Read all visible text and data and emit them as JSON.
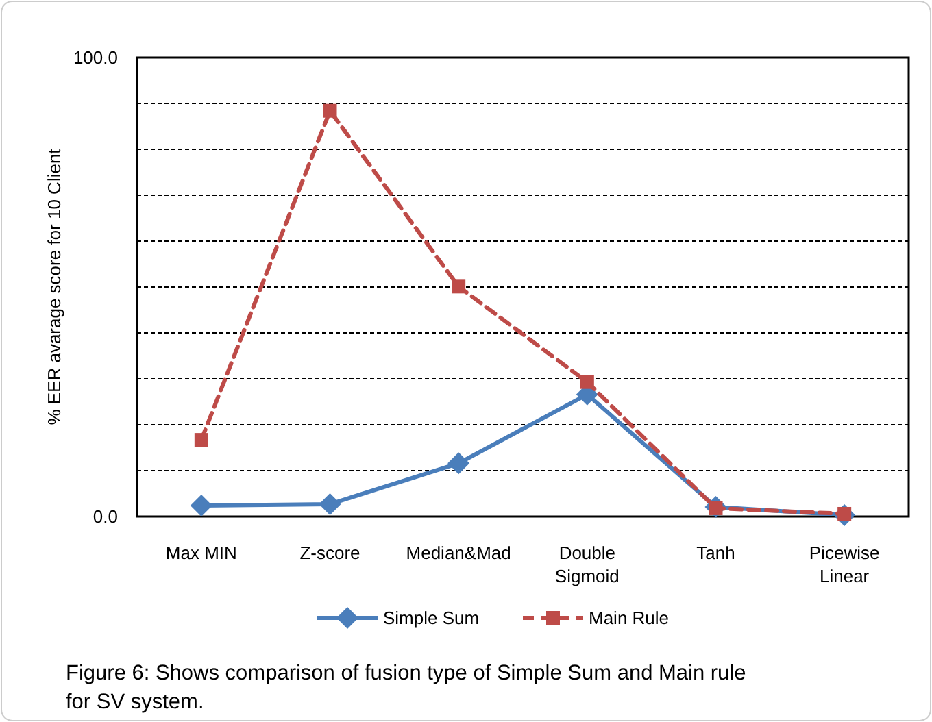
{
  "chart_data": {
    "type": "line",
    "ylabel": "% EER avarage score for 10 Client",
    "categories": [
      "Max MIN",
      "Z-score",
      "Median&Mad",
      "Double Sigmoid",
      "Tanh",
      "Picewise Linear"
    ],
    "series": [
      {
        "name": "Simple Sum",
        "color": "#4a7ebb",
        "values": [
          2.4,
          2.7,
          11.6,
          26.6,
          2.1,
          0.3
        ],
        "marker": "diamond",
        "line_style": "solid"
      },
      {
        "name": "Main Rule",
        "color": "#be4b48",
        "values": [
          16.7,
          88.4,
          50.1,
          29.3,
          1.8,
          0.6
        ],
        "marker": "square",
        "line_style": "dashed"
      }
    ],
    "ylim": [
      0,
      100
    ],
    "yticks": [
      {
        "value": 0,
        "label": "0.0"
      },
      {
        "value": 10,
        "label": null
      },
      {
        "value": 20,
        "label": null
      },
      {
        "value": 30,
        "label": null
      },
      {
        "value": 40,
        "label": null
      },
      {
        "value": 50,
        "label": null
      },
      {
        "value": 60,
        "label": null
      },
      {
        "value": 70,
        "label": null
      },
      {
        "value": 80,
        "label": null
      },
      {
        "value": 90,
        "label": null
      },
      {
        "value": 100,
        "label": "100.0"
      }
    ],
    "grid": "y",
    "legend": "bottom",
    "annotations": [
      "Figure 6: Shows comparison of fusion type of Simple Sum and Main rule for SV system."
    ]
  }
}
